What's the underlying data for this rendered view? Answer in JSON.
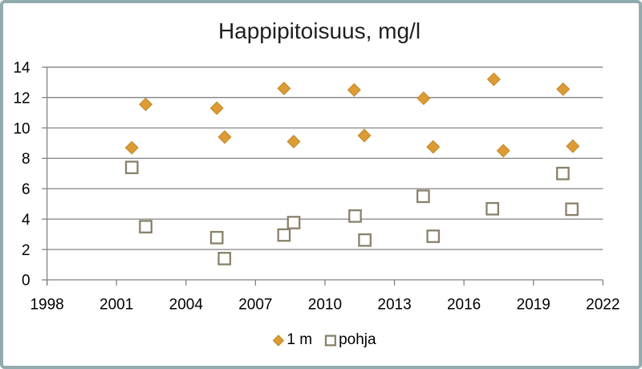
{
  "chart_data": {
    "type": "scatter",
    "title": "Happipitoisuus, mg/l",
    "xlabel": "",
    "ylabel": "",
    "x_axis": {
      "min": 1998,
      "max": 2022,
      "step": 3,
      "ticks": [
        "1998",
        "2001",
        "2004",
        "2007",
        "2010",
        "2013",
        "2016",
        "2019",
        "2022"
      ]
    },
    "y_axis": {
      "min": 0,
      "max": 14,
      "step": 2,
      "ticks": [
        "0",
        "2",
        "4",
        "6",
        "8",
        "10",
        "12",
        "14"
      ]
    },
    "grid": "horizontal-major",
    "legend_position": "bottom-center",
    "series": [
      {
        "name": "1 m",
        "marker": "diamond",
        "fill": "#DC9B35",
        "stroke": "#C08727",
        "points": [
          [
            2001.66,
            8.7
          ],
          [
            2002.26,
            11.55
          ],
          [
            2005.33,
            11.3
          ],
          [
            2005.67,
            9.4
          ],
          [
            2008.23,
            12.6
          ],
          [
            2008.65,
            9.1
          ],
          [
            2011.26,
            12.5
          ],
          [
            2011.7,
            9.5
          ],
          [
            2014.26,
            11.95
          ],
          [
            2014.67,
            8.75
          ],
          [
            2017.29,
            13.2
          ],
          [
            2017.7,
            8.5
          ],
          [
            2020.28,
            12.55
          ],
          [
            2020.7,
            8.8
          ]
        ]
      },
      {
        "name": "pohja",
        "marker": "open-square",
        "fill": "#FFFFFF",
        "stroke": "#8A8169",
        "points": [
          [
            2001.66,
            7.4
          ],
          [
            2002.26,
            3.5
          ],
          [
            2005.33,
            2.78
          ],
          [
            2005.66,
            1.4
          ],
          [
            2008.23,
            2.95
          ],
          [
            2008.65,
            3.77
          ],
          [
            2011.3,
            4.2
          ],
          [
            2011.72,
            2.62
          ],
          [
            2014.24,
            5.5
          ],
          [
            2014.67,
            2.87
          ],
          [
            2017.23,
            4.68
          ],
          [
            2020.27,
            7.0
          ],
          [
            2020.66,
            4.65
          ]
        ]
      }
    ]
  },
  "frame": {
    "border_color": "#92ABAF",
    "background": "#FFFFFF"
  },
  "colors": {
    "gridline": "#828282",
    "axis_line": "#828282",
    "title_text": "#1F1F1F",
    "label_text": "#000000"
  }
}
